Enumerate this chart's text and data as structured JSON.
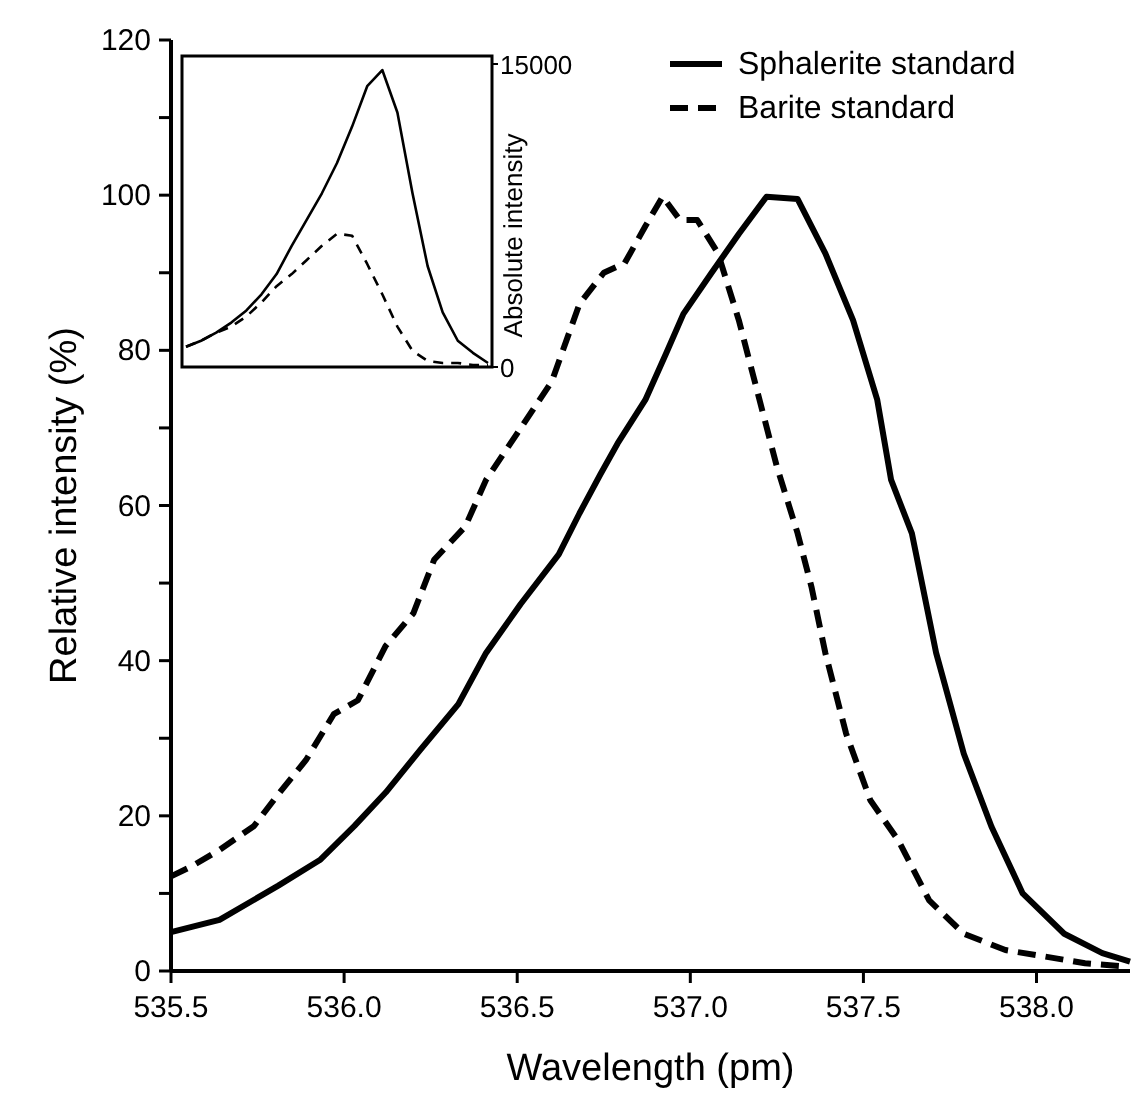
{
  "chart_data": [
    {
      "type": "line",
      "xlabel": "Wavelength (pm)",
      "ylabel": "Relative intensity (%)",
      "xlim": [
        535.5,
        538.27
      ],
      "ylim": [
        0,
        120
      ],
      "xticks": [
        535.5,
        {
          "value": 536,
          "label": "536.0"
        },
        536.5,
        {
          "value": 537,
          "label": "537.0"
        },
        537.5,
        {
          "value": 538,
          "label": "538.0"
        }
      ],
      "yticks": [
        0,
        {
          "value": 10,
          "label": null
        },
        20,
        {
          "value": 30,
          "label": null
        },
        40,
        {
          "value": 50,
          "label": null
        },
        60,
        {
          "value": 70,
          "label": null
        },
        80,
        {
          "value": 90,
          "label": null
        },
        100,
        {
          "value": 110,
          "label": null
        },
        120
      ],
      "legend": "top right",
      "grid": false,
      "series": [
        {
          "name": "Sphalerite standard",
          "color": "#000000",
          "line_style": "solid",
          "x": [
            535.5,
            535.64,
            535.81,
            535.93,
            536.03,
            536.12,
            536.22,
            536.33,
            536.41,
            536.51,
            536.62,
            536.68,
            536.74,
            536.79,
            536.87,
            536.93,
            536.98,
            537.06,
            537.14,
            537.22,
            537.31,
            537.39,
            537.47,
            537.54,
            537.58,
            537.64,
            537.71,
            537.79,
            537.87,
            537.96,
            538.08,
            538.19,
            538.27
          ],
          "values": [
            5,
            6.6,
            11,
            14.3,
            18.7,
            23,
            28.5,
            34.4,
            41,
            47.3,
            53.7,
            59,
            64,
            68,
            73.6,
            79.6,
            84.7,
            89.9,
            95,
            99.8,
            99.5,
            92.5,
            83.9,
            73.6,
            63.3,
            56.4,
            41,
            28,
            18.6,
            10,
            4.8,
            2.3,
            1.2
          ]
        },
        {
          "name": "Barite standard",
          "color": "#000000",
          "line_style": "dashed",
          "x": [
            535.5,
            535.56,
            535.64,
            535.74,
            535.81,
            535.89,
            535.97,
            536.04,
            536.12,
            536.2,
            536.26,
            536.35,
            536.41,
            536.5,
            536.6,
            536.68,
            536.75,
            536.81,
            536.87,
            536.92,
            536.97,
            537.02,
            537.08,
            537.14,
            537.2,
            537.25,
            537.31,
            537.35,
            537.39,
            537.45,
            537.52,
            537.6,
            537.69,
            537.79,
            537.91,
            538.02,
            538.14,
            538.25
          ],
          "values": [
            12.2,
            13.5,
            15.6,
            18.7,
            22.8,
            27.2,
            33.1,
            34.9,
            41.9,
            46.1,
            53,
            57.3,
            63.3,
            69.3,
            76,
            86,
            90,
            91.2,
            96,
            99.8,
            96.8,
            96.8,
            92.5,
            83.9,
            73.6,
            65,
            56.4,
            49.5,
            41,
            30.6,
            22,
            16.9,
            9.1,
            4.8,
            2.7,
            1.9,
            1,
            0.6
          ]
        }
      ]
    },
    {
      "type": "line",
      "ylabel": "Absolute intensity",
      "ylim": [
        0,
        15000
      ],
      "yticks": [
        0,
        15000
      ],
      "tick_labels": "y",
      "categories": [
        null,
        null,
        null,
        null,
        null,
        null,
        null,
        null,
        null,
        null,
        null,
        null,
        null,
        null,
        null,
        null,
        null,
        null,
        null,
        null,
        null
      ],
      "series": [
        {
          "color": "#000000",
          "line_style": "solid",
          "values": [
            1000,
            1300,
            1700,
            2200,
            2800,
            3600,
            4600,
            6000,
            7300,
            8600,
            10100,
            11900,
            13900,
            14700,
            12600,
            8600,
            5000,
            2700,
            1300,
            700,
            200
          ]
        },
        {
          "color": "#000000",
          "line_style": "dashed",
          "values": [
            1000,
            1300,
            1700,
            2000,
            2500,
            3200,
            4000,
            4600,
            5300,
            6000,
            6600,
            6500,
            5100,
            3600,
            2000,
            800,
            300,
            200,
            200,
            100,
            100
          ]
        }
      ]
    }
  ]
}
